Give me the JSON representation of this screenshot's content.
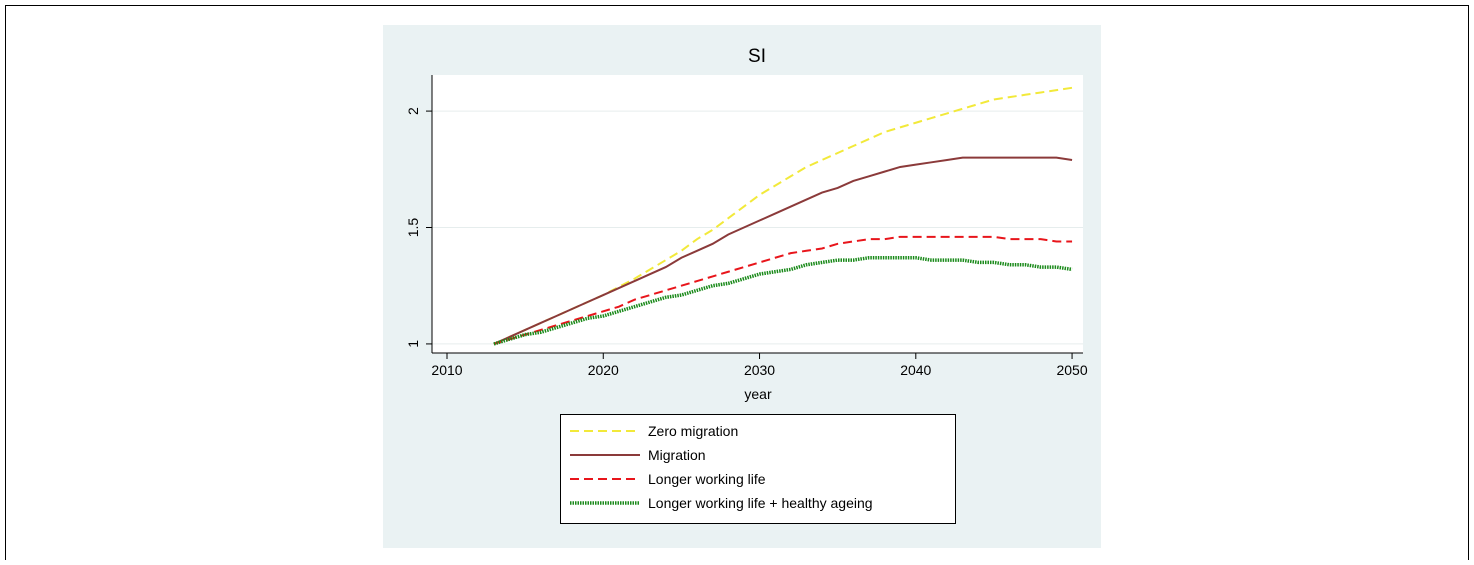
{
  "chart_data": {
    "type": "line",
    "title": "SI",
    "xlabel": "year",
    "x": [
      2013,
      2014,
      2015,
      2016,
      2017,
      2018,
      2019,
      2020,
      2021,
      2022,
      2023,
      2024,
      2025,
      2026,
      2027,
      2028,
      2029,
      2030,
      2031,
      2032,
      2033,
      2034,
      2035,
      2036,
      2037,
      2038,
      2039,
      2040,
      2041,
      2042,
      2043,
      2044,
      2045,
      2046,
      2047,
      2048,
      2049,
      2050
    ],
    "series": [
      {
        "name": "Zero migration",
        "color": "#f2e93a",
        "style": "dash",
        "values": [
          1.0,
          1.03,
          1.06,
          1.09,
          1.12,
          1.15,
          1.18,
          1.21,
          1.245,
          1.28,
          1.32,
          1.36,
          1.4,
          1.45,
          1.49,
          1.54,
          1.59,
          1.64,
          1.68,
          1.72,
          1.76,
          1.79,
          1.82,
          1.85,
          1.88,
          1.91,
          1.93,
          1.95,
          1.97,
          1.99,
          2.01,
          2.03,
          2.05,
          2.06,
          2.07,
          2.08,
          2.09,
          2.1
        ]
      },
      {
        "name": "Migration",
        "color": "#8b3a3a",
        "style": "solid",
        "values": [
          1.0,
          1.03,
          1.06,
          1.09,
          1.12,
          1.15,
          1.18,
          1.21,
          1.24,
          1.27,
          1.3,
          1.33,
          1.37,
          1.4,
          1.43,
          1.47,
          1.5,
          1.53,
          1.56,
          1.59,
          1.62,
          1.65,
          1.67,
          1.7,
          1.72,
          1.74,
          1.76,
          1.77,
          1.78,
          1.79,
          1.8,
          1.8,
          1.8,
          1.8,
          1.8,
          1.8,
          1.8,
          1.79
        ]
      },
      {
        "name": "Longer working life",
        "color": "#e8151b",
        "style": "dash",
        "values": [
          1.0,
          1.02,
          1.04,
          1.06,
          1.08,
          1.1,
          1.12,
          1.14,
          1.16,
          1.19,
          1.21,
          1.23,
          1.25,
          1.27,
          1.29,
          1.31,
          1.33,
          1.35,
          1.37,
          1.39,
          1.4,
          1.41,
          1.43,
          1.44,
          1.45,
          1.45,
          1.46,
          1.46,
          1.46,
          1.46,
          1.46,
          1.46,
          1.46,
          1.45,
          1.45,
          1.45,
          1.44,
          1.44
        ]
      },
      {
        "name": "Longer working life + healthy ageing",
        "color": "#1a8a1a",
        "style": "dot",
        "values": [
          1.0,
          1.02,
          1.04,
          1.05,
          1.07,
          1.09,
          1.11,
          1.12,
          1.14,
          1.16,
          1.18,
          1.2,
          1.21,
          1.23,
          1.25,
          1.26,
          1.28,
          1.3,
          1.31,
          1.32,
          1.34,
          1.35,
          1.36,
          1.36,
          1.37,
          1.37,
          1.37,
          1.37,
          1.36,
          1.36,
          1.36,
          1.35,
          1.35,
          1.34,
          1.34,
          1.33,
          1.33,
          1.32
        ]
      }
    ],
    "xlim": [
      2009.04,
      2050.7
    ],
    "xticks": [
      2010,
      2020,
      2030,
      2040,
      2050
    ],
    "ylim": [
      0.961,
      2.155
    ],
    "yticks": [
      1,
      1.5,
      2
    ],
    "grid": true
  }
}
